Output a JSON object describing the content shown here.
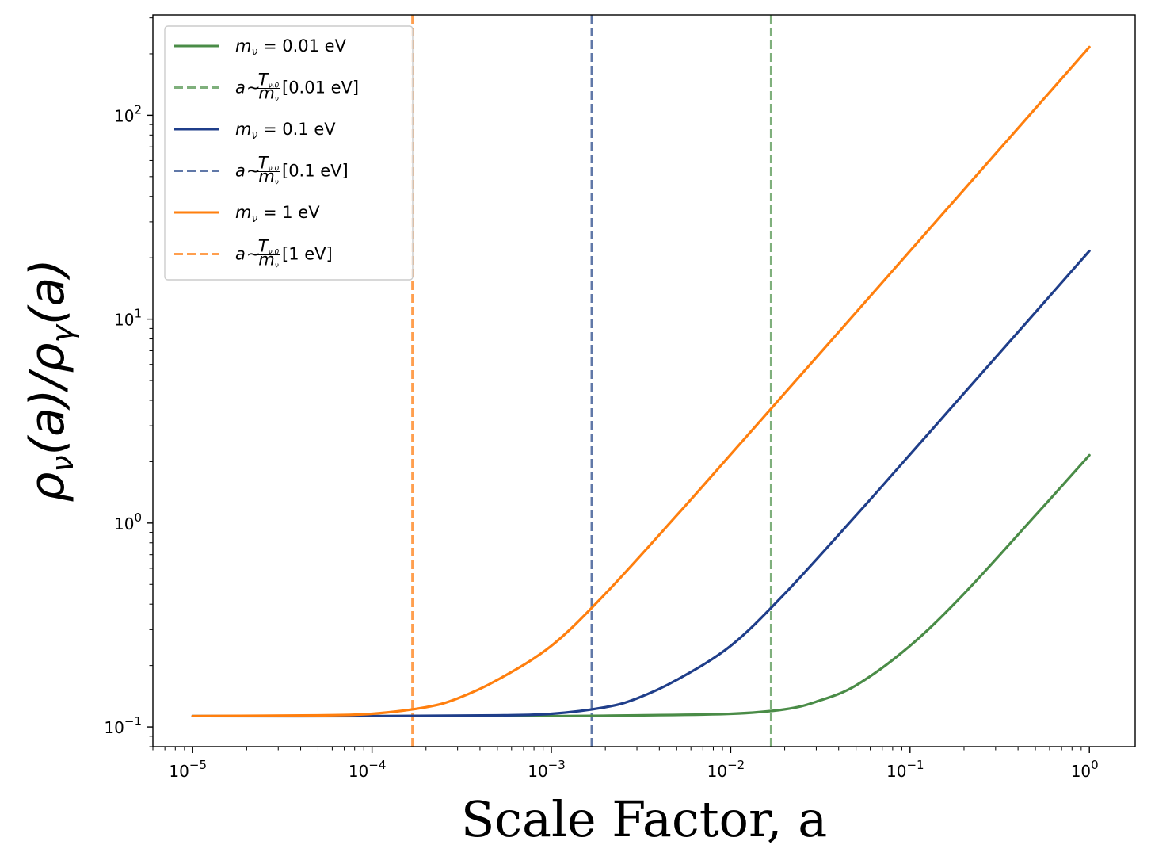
{
  "chart_data": {
    "type": "line",
    "title": "",
    "xlabel": "Scale Factor, a",
    "ylabel_parts": [
      "ρ",
      "ν",
      "(a)/",
      "ρ",
      "γ",
      "(a)"
    ],
    "xscale": "log",
    "yscale": "log",
    "xlim": [
      6e-06,
      1.8
    ],
    "ylim": [
      0.08,
      310
    ],
    "grid": false,
    "legend_loc": "upper-left",
    "x_ticks": [
      {
        "value": 1e-05,
        "base": "10",
        "exp": "−5"
      },
      {
        "value": 0.0001,
        "base": "10",
        "exp": "−4"
      },
      {
        "value": 0.001,
        "base": "10",
        "exp": "−3"
      },
      {
        "value": 0.01,
        "base": "10",
        "exp": "−2"
      },
      {
        "value": 0.1,
        "base": "10",
        "exp": "−1"
      },
      {
        "value": 1,
        "base": "10",
        "exp": "0"
      }
    ],
    "y_ticks": [
      {
        "value": 0.1,
        "base": "10",
        "exp": "−1"
      },
      {
        "value": 1,
        "base": "10",
        "exp": "0"
      },
      {
        "value": 10,
        "base": "10",
        "exp": "1"
      },
      {
        "value": 100,
        "base": "10",
        "exp": "2"
      }
    ],
    "series": [
      {
        "name": "m_ν = 0.01 eV",
        "legend_parts": {
          "var": "m",
          "sub": "ν",
          "rest": " = 0.01 eV"
        },
        "color": "#4a8c47",
        "style": "solid",
        "x": [
          1e-05,
          0.0001,
          0.001,
          0.003,
          0.01,
          0.02,
          0.03,
          0.05,
          0.1,
          0.2,
          0.5,
          1
        ],
        "y": [
          0.113,
          0.113,
          0.113,
          0.114,
          0.116,
          0.122,
          0.133,
          0.16,
          0.25,
          0.45,
          1.09,
          2.15
        ]
      },
      {
        "name": "a ~ T_ν,0/m_ν [0.01 eV]",
        "legend_parts": {
          "label": "[0.01 eV]"
        },
        "color": "#7fb07c",
        "style": "dashed",
        "x": [
          0.0168,
          0.0168
        ],
        "y": [
          0.08,
          310
        ]
      },
      {
        "name": "m_ν = 0.1 eV",
        "legend_parts": {
          "var": "m",
          "sub": "ν",
          "rest": " = 0.1 eV"
        },
        "color": "#1f3e8a",
        "style": "solid",
        "x": [
          1e-05,
          0.0001,
          0.0005,
          0.001,
          0.002,
          0.003,
          0.005,
          0.01,
          0.02,
          0.05,
          0.1,
          0.2,
          0.5,
          1
        ],
        "y": [
          0.113,
          0.113,
          0.114,
          0.116,
          0.125,
          0.138,
          0.17,
          0.25,
          0.45,
          1.09,
          2.17,
          4.33,
          10.8,
          21.6
        ]
      },
      {
        "name": "a ~ T_ν,0/m_ν [0.1 eV]",
        "legend_parts": {
          "label": "[0.1 eV]"
        },
        "color": "#6078a8",
        "style": "dashed",
        "x": [
          0.00168,
          0.00168
        ],
        "y": [
          0.08,
          310
        ]
      },
      {
        "name": "m_ν = 1 eV",
        "legend_parts": {
          "var": "m",
          "sub": "ν",
          "rest": " = 1 eV"
        },
        "color": "#ff7f0e",
        "style": "solid",
        "x": [
          1e-05,
          5e-05,
          0.0001,
          0.0002,
          0.0003,
          0.0005,
          0.001,
          0.002,
          0.005,
          0.01,
          0.02,
          0.05,
          0.1,
          0.2,
          0.5,
          1
        ],
        "y": [
          0.113,
          0.114,
          0.116,
          0.125,
          0.138,
          0.17,
          0.25,
          0.45,
          1.09,
          2.17,
          4.33,
          10.8,
          21.6,
          43.2,
          108,
          216
        ]
      },
      {
        "name": "a ~ T_ν,0/m_ν [1 eV]",
        "legend_parts": {
          "label": "[1 eV]"
        },
        "color": "#ff9f4f",
        "style": "dashed",
        "x": [
          0.000168,
          0.000168
        ],
        "y": [
          0.08,
          310
        ]
      }
    ]
  },
  "legend_tokens": {
    "a_symbol": "a",
    "tilde": "∼",
    "frac_num_var": "T",
    "frac_num_sub": "ν,0",
    "frac_den_var": "m",
    "frac_den_sub": "ν"
  }
}
